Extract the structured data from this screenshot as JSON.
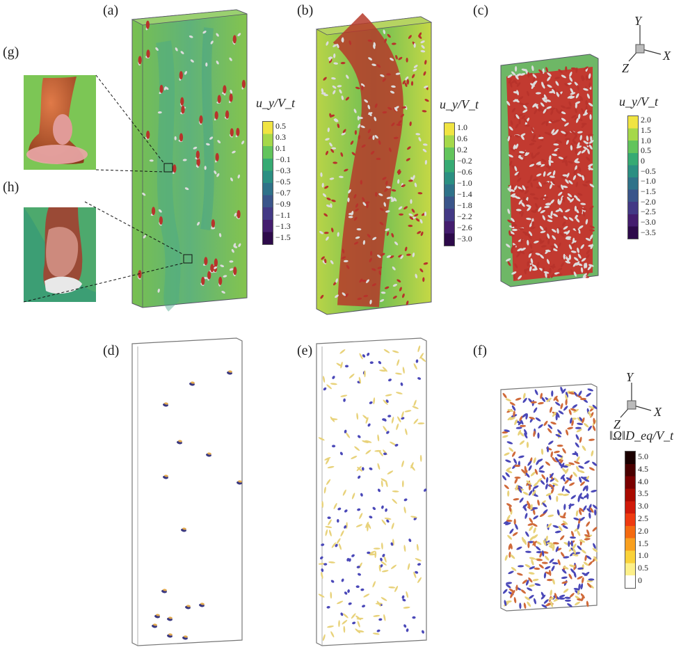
{
  "panel_labels": [
    "(a)",
    "(b)",
    "(c)",
    "(d)",
    "(e)",
    "(f)",
    "(g)",
    "(h)"
  ],
  "colorbars": {
    "a": {
      "title": "u_y/V_t",
      "ticks": [
        "0.5",
        "0.3",
        "0.1",
        "−0.1",
        "−0.3",
        "−0.5",
        "−0.7",
        "−0.9",
        "−1.1",
        "−1.3",
        "−1.5"
      ]
    },
    "b": {
      "title": "u_y/V_t",
      "ticks": [
        "1.0",
        "0.6",
        "0.2",
        "−0.2",
        "−0.6",
        "−1.0",
        "−1.4",
        "−1.8",
        "−2.2",
        "−2.6",
        "−3.0"
      ]
    },
    "c": {
      "title": "u_y/V_t",
      "ticks": [
        "2.0",
        "1.5",
        "1.0",
        "0.5",
        "0",
        "−0.5",
        "−1.0",
        "−1.5",
        "−2.0",
        "−2.5",
        "−3.0",
        "−3.5"
      ]
    },
    "f": {
      "title": "‖Ω‖D_eq/V_t",
      "ticks": [
        "5.0",
        "4.5",
        "4.0",
        "3.5",
        "3.0",
        "2.5",
        "2.0",
        "1.5",
        "1.0",
        "0.5",
        "0"
      ]
    }
  },
  "axes_triad": {
    "x": "X",
    "y": "Y",
    "z": "Z"
  },
  "colors": {
    "field_green": "#7cc455",
    "field_yellow": "#e6dc3c",
    "particle_red": "#b8332b",
    "particle_white": "#dcdcdc",
    "vortex_yellow": "#e8d27a",
    "vortex_blue": "#4a48b8"
  }
}
